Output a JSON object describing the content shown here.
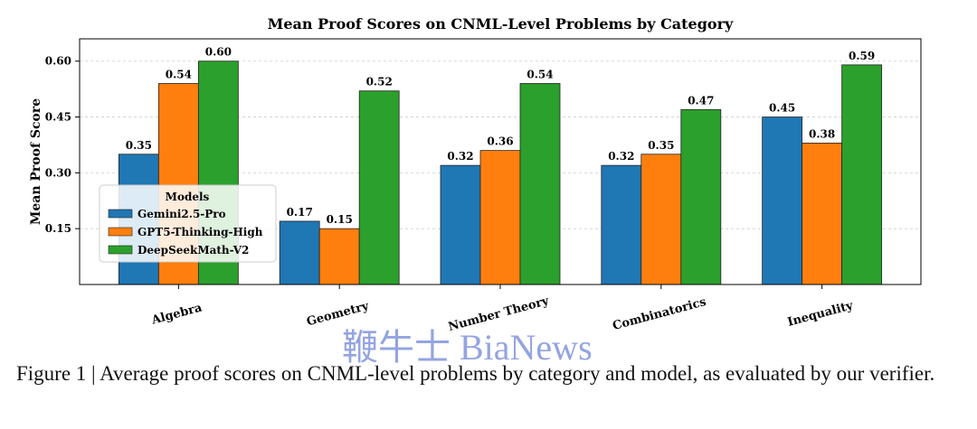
{
  "chart_data": {
    "type": "bar",
    "title": "Mean Proof Scores on CNML-Level Problems by Category",
    "ylabel": "Mean Proof Score",
    "categories": [
      "Algebra",
      "Geometry",
      "Number Theory",
      "Combinatorics",
      "Inequality"
    ],
    "series": [
      {
        "name": "Gemini2.5-Pro",
        "color": "#1f77b4",
        "values": [
          0.35,
          0.17,
          0.32,
          0.32,
          0.45
        ]
      },
      {
        "name": "GPT5-Thinking-High",
        "color": "#ff7f0e",
        "values": [
          0.54,
          0.15,
          0.36,
          0.35,
          0.38
        ]
      },
      {
        "name": "DeepSeekMath-V2",
        "color": "#2ca02c",
        "values": [
          0.6,
          0.52,
          0.54,
          0.47,
          0.59
        ]
      }
    ],
    "value_labels": [
      [
        "0.35",
        "0.17",
        "0.32",
        "0.32",
        "0.45"
      ],
      [
        "0.54",
        "0.15",
        "0.36",
        "0.35",
        "0.38"
      ],
      [
        "0.60",
        "0.52",
        "0.54",
        "0.47",
        "0.59"
      ]
    ],
    "ylim": [
      0,
      0.66
    ],
    "yticks": [
      {
        "value": 0.15,
        "label": "0.15"
      },
      {
        "value": 0.3,
        "label": "0.30"
      },
      {
        "value": 0.45,
        "label": "0.45"
      },
      {
        "value": 0.6,
        "label": "0.60"
      }
    ],
    "grid": true,
    "legend_title": "Models",
    "legend_position": "left"
  },
  "caption": "Figure 1 | Average proof scores on CNML-level problems by category and model, as evaluated by our verifier.",
  "watermark": "鞭牛士 BiaNews"
}
